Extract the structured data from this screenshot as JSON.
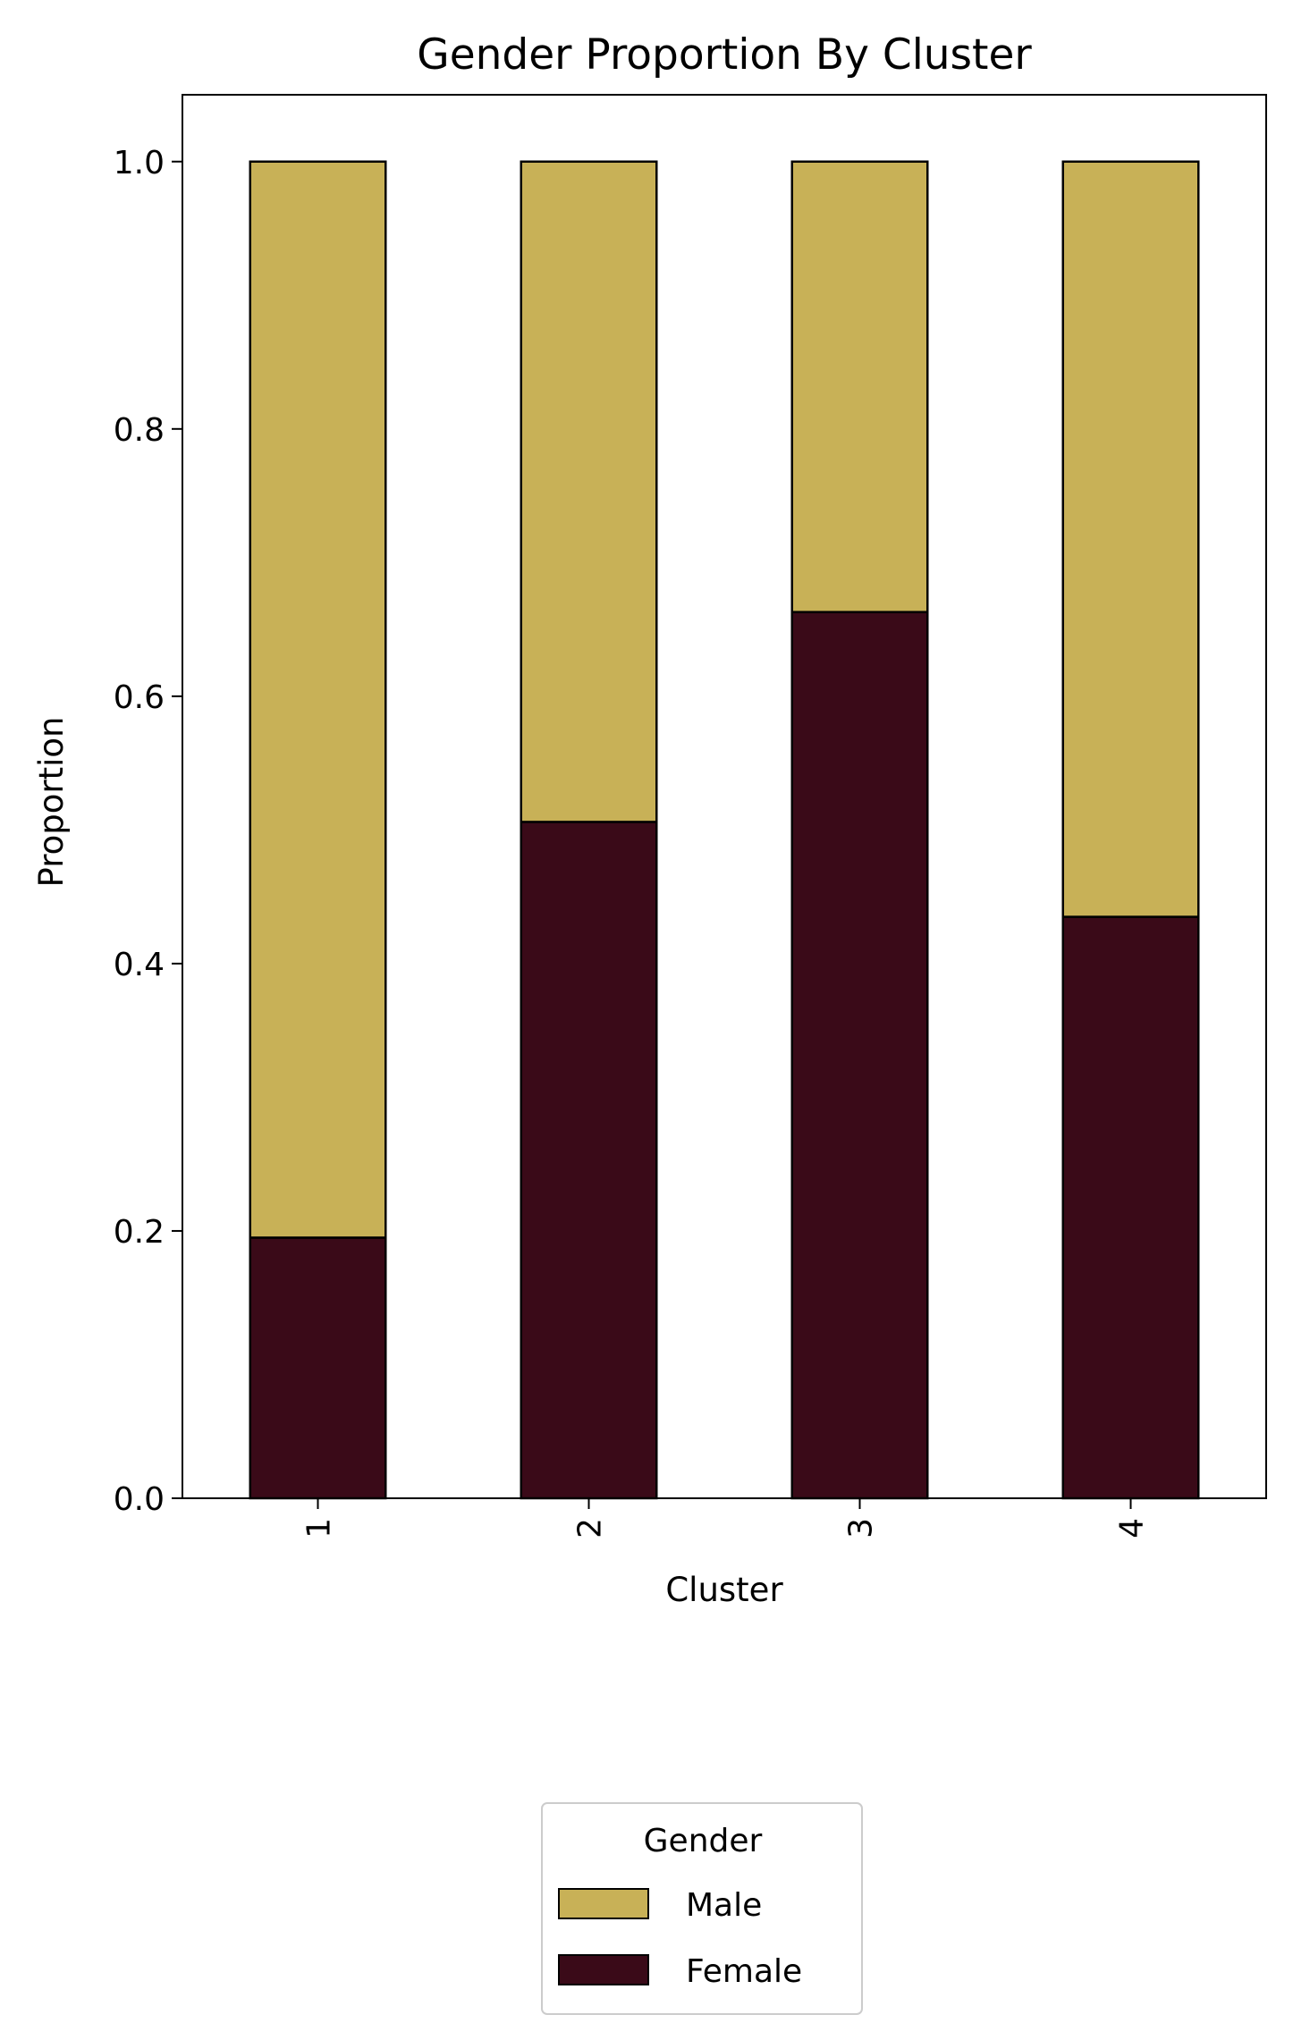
{
  "chart_data": {
    "type": "bar",
    "stacked": true,
    "title": "Gender Proportion By Cluster",
    "xlabel": "Cluster",
    "ylabel": "Proportion",
    "categories": [
      "1",
      "2",
      "3",
      "4"
    ],
    "yticks": [
      "0.0",
      "0.2",
      "0.4",
      "0.6",
      "0.8",
      "1.0"
    ],
    "ylim": [
      0,
      1.05
    ],
    "series": [
      {
        "name": "Female",
        "color": "#3a0a18",
        "values": [
          0.195,
          0.506,
          0.663,
          0.435
        ]
      },
      {
        "name": "Male",
        "color": "#c8b157",
        "values": [
          0.805,
          0.494,
          0.337,
          0.565
        ]
      }
    ],
    "grid": false,
    "legend": {
      "title": "Gender",
      "placement": "bottom-center",
      "entries": [
        "Male",
        "Female"
      ]
    }
  }
}
